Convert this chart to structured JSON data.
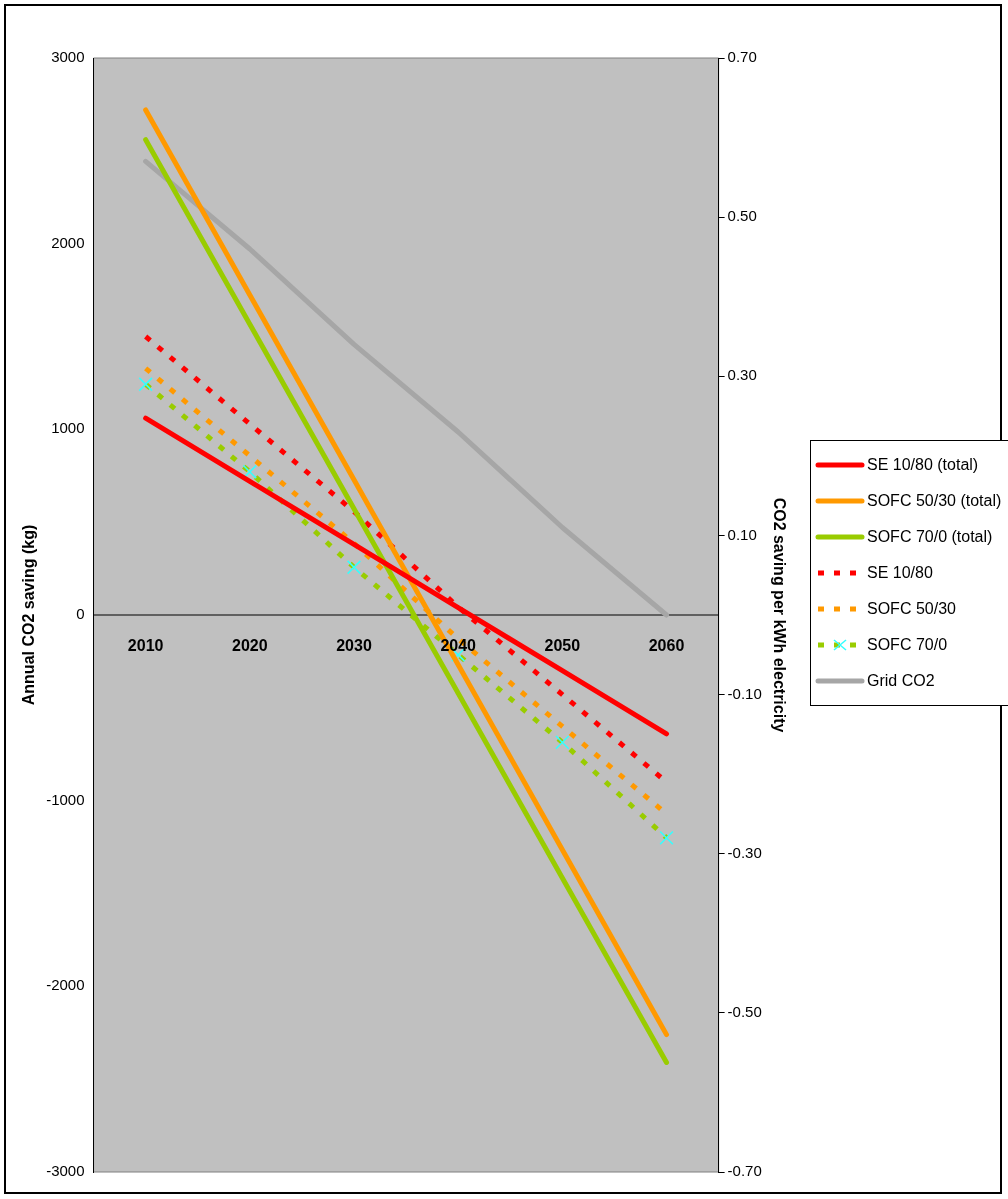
{
  "chart_data": {
    "type": "line",
    "categories": [
      "2010",
      "2020",
      "2030",
      "2040",
      "2050",
      "2060"
    ],
    "ylabel": "Annual CO2 saving (kg)",
    "y2label": "CO2 saving per kWh electricity",
    "ylim": [
      -3000,
      3000
    ],
    "yticks": [
      -3000,
      -2000,
      -1000,
      0,
      1000,
      2000,
      3000
    ],
    "y2lim": [
      -0.7,
      0.7
    ],
    "y2ticks": [
      {
        "value": -0.7,
        "label": "-0.70"
      },
      {
        "value": -0.5,
        "label": "-0.50"
      },
      {
        "value": -0.3,
        "label": "-0.30"
      },
      {
        "value": -0.1,
        "label": "-0.10"
      },
      {
        "value": 0.1,
        "label": "0.10"
      },
      {
        "value": 0.3,
        "label": "0.30"
      },
      {
        "value": 0.5,
        "label": "0.50"
      },
      {
        "value": 0.7,
        "label": "0.70"
      }
    ],
    "grid": false,
    "legend": "right",
    "marker": "none",
    "series": [
      {
        "name": "SE 10/80 (total)",
        "color": "#ff0000",
        "values": [
          1060,
          720,
          380,
          40,
          -300,
          -640
        ]
      },
      {
        "name": "SOFC 50/30 (total)",
        "color": "#ff9900",
        "values": [
          2720,
          1724,
          728,
          -268,
          -1264,
          -2260
        ]
      },
      {
        "name": "SOFC 70/0 (total)",
        "color": "#99cc00",
        "values": [
          2560,
          1566,
          572,
          -422,
          -1416,
          -2410
        ]
      },
      {
        "name": "SE 10/80",
        "color": "#ff0000",
        "axis": "y2",
        "line_style": "dashed",
        "values": [
          0.35,
          0.24,
          0.13,
          0.01,
          -0.1,
          -0.21
        ]
      },
      {
        "name": "SOFC 50/30",
        "color": "#ff9900",
        "axis": "y2",
        "line_style": "dashed",
        "values": [
          0.31,
          0.2,
          0.09,
          -0.03,
          -0.14,
          -0.25
        ]
      },
      {
        "name": "SOFC 70/0",
        "color": "#99cc00",
        "axis": "y2",
        "line_style": "dashed",
        "marker": "cross",
        "values": [
          0.29,
          0.18,
          0.06,
          -0.05,
          -0.16,
          -0.28
        ]
      },
      {
        "name": "Grid CO2",
        "color": "#a6a6a6",
        "axis": "y2",
        "values": [
          0.57,
          0.46,
          0.34,
          0.23,
          0.11,
          0
        ]
      }
    ]
  }
}
